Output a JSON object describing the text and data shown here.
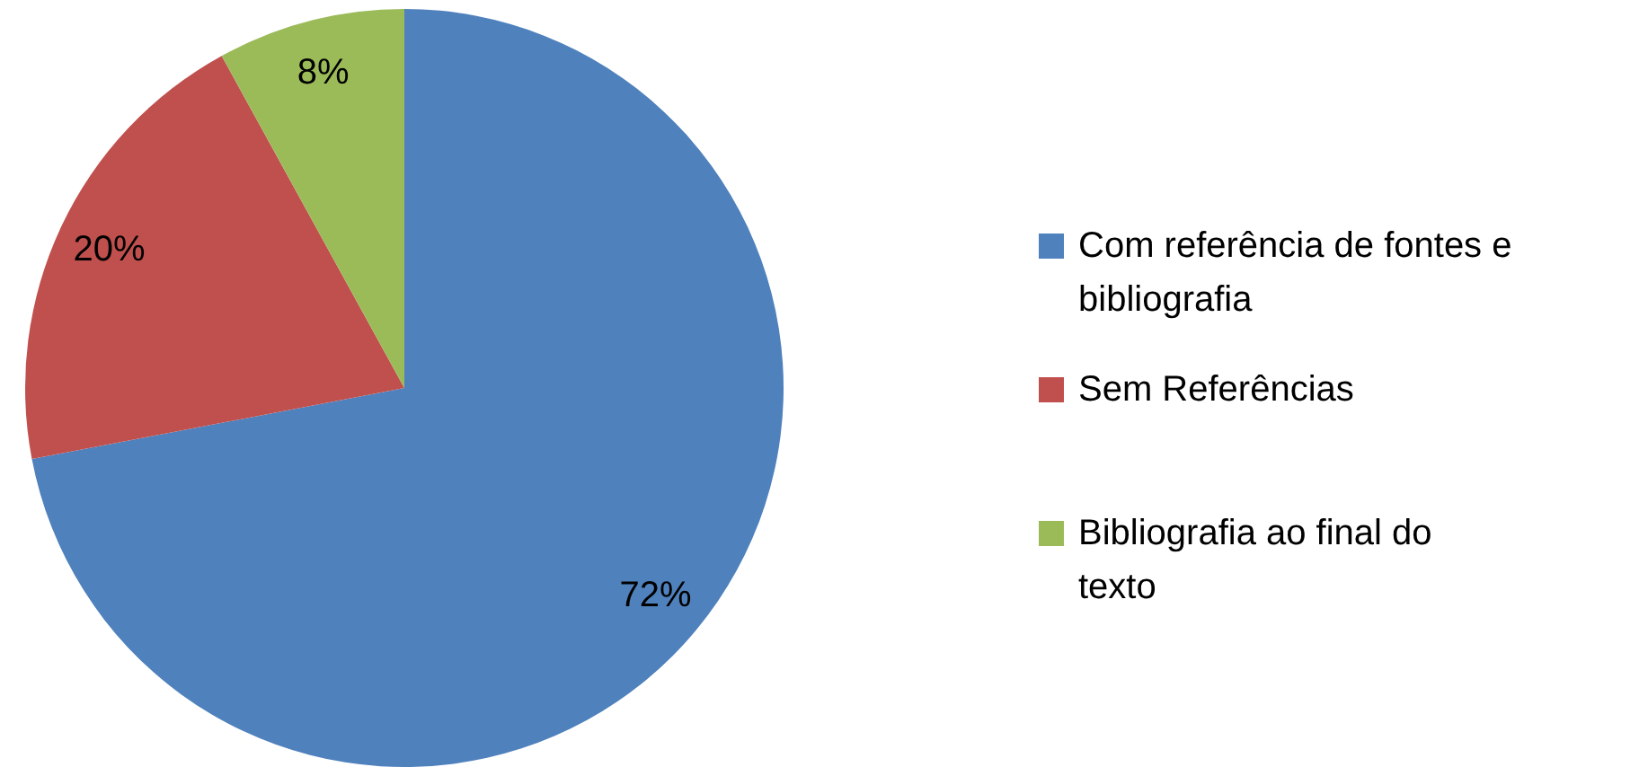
{
  "chart_data": {
    "type": "pie",
    "categories": [
      "Com referência de fontes e bibliografia",
      "Sem Referências",
      "Bibliografia ao final do texto"
    ],
    "values": [
      72,
      20,
      8
    ],
    "colors": [
      "#4f81bd",
      "#c0504d",
      "#9bbb59"
    ],
    "value_labels": [
      "72%",
      "20%",
      "8%"
    ],
    "legend": "right"
  }
}
